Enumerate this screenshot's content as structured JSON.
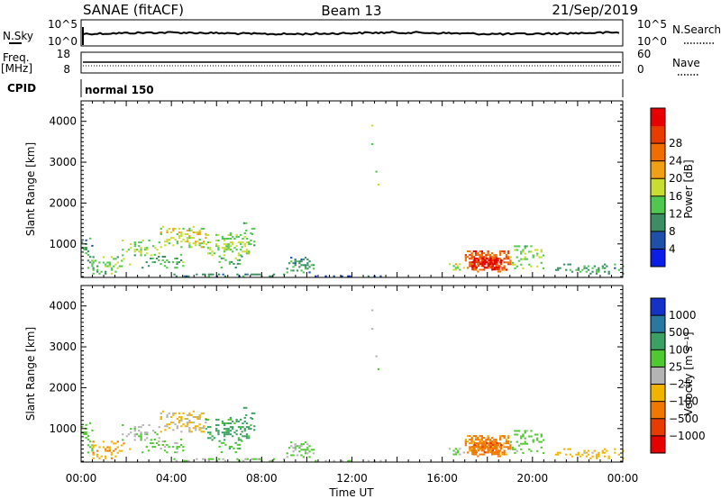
{
  "chart_data": {
    "type": "heatmap",
    "header": {
      "station_title": "SANAE (fitACF)",
      "beam_label": "Beam 13",
      "date_label": "21/Sep/2019"
    },
    "noise_panel": {
      "left_label": "N.Sky",
      "right_label": "N.Search",
      "left_ticks": [
        "10^5",
        "10^0"
      ],
      "right_ticks": [
        "10^5",
        "10^0"
      ]
    },
    "freq_panel": {
      "left_label_1": "Freq.",
      "left_label_2": "[MHz]",
      "right_label": "Nave",
      "left_ticks": [
        "18",
        "8"
      ],
      "right_ticks": [
        "60",
        "0"
      ]
    },
    "cpid_panel": {
      "left_label": "CPID",
      "mode_text": "normal 150"
    },
    "x_axis": {
      "xlabel": "Time UT",
      "tick_labels": [
        "00:00",
        "04:00",
        "08:00",
        "12:00",
        "16:00",
        "20:00",
        "00:00"
      ],
      "range_hours": [
        0,
        24
      ]
    },
    "power_panel": {
      "ylabel": "Slant Range [km]",
      "y_ticks": [
        "1000",
        "2000",
        "3000",
        "4000"
      ],
      "yrange_km": [
        180,
        4500
      ],
      "colorbar_label": "Power [dB]",
      "colorbar_ticks": [
        "4",
        "8",
        "12",
        "16",
        "20",
        "24",
        "28"
      ],
      "colorbar_colors": [
        "#0a1ee6",
        "#1e50aa",
        "#3c8c64",
        "#50c850",
        "#c8dc32",
        "#f0a014",
        "#f06e00",
        "#e63c00",
        "#e60000"
      ],
      "colorbar_range": [
        0,
        32
      ]
    },
    "velocity_panel": {
      "ylabel": "Slant Range [km]",
      "y_ticks": [
        "1000",
        "2000",
        "3000",
        "4000"
      ],
      "yrange_km": [
        180,
        4500
      ],
      "colorbar_label": "Velocity [m s⁻¹]",
      "colorbar_ticks": [
        "1000",
        "500",
        "100",
        "25",
        "−25",
        "−100",
        "−500",
        "−1000"
      ],
      "colorbar_colors": [
        "#1432c8",
        "#2878a0",
        "#3ca064",
        "#50c832",
        "#b4b4b4",
        "#f0b400",
        "#f07800",
        "#e63c00",
        "#e60000"
      ]
    },
    "data_patches": [
      {
        "t0": 0.0,
        "t1": 0.5,
        "r0": 300,
        "r1": 1200,
        "power": 10,
        "velocity": 60,
        "density": 0.35
      },
      {
        "t0": 0.5,
        "t1": 2.2,
        "r0": 250,
        "r1": 700,
        "power": 13,
        "velocity": -80,
        "density": 0.35
      },
      {
        "t0": 1.8,
        "t1": 3.5,
        "r0": 700,
        "r1": 1100,
        "power": 14,
        "velocity": 20,
        "density": 0.3
      },
      {
        "t0": 3.5,
        "t1": 5.5,
        "r0": 900,
        "r1": 1400,
        "power": 16,
        "velocity": -30,
        "density": 0.5
      },
      {
        "t0": 5.5,
        "t1": 7.5,
        "r0": 700,
        "r1": 1250,
        "power": 14,
        "velocity": 150,
        "density": 0.45
      },
      {
        "t0": 2.5,
        "t1": 4.5,
        "r0": 350,
        "r1": 750,
        "power": 11,
        "velocity": 40,
        "density": 0.25
      },
      {
        "t0": 6.0,
        "t1": 7.2,
        "r0": 400,
        "r1": 700,
        "power": 12,
        "velocity": 80,
        "density": 0.3
      },
      {
        "t0": 7.0,
        "t1": 8.0,
        "r0": 900,
        "r1": 1700,
        "power": 10,
        "velocity": 200,
        "density": 0.08
      },
      {
        "t0": 9.0,
        "t1": 10.3,
        "r0": 280,
        "r1": 650,
        "power": 9,
        "velocity": 30,
        "density": 0.6
      },
      {
        "t0": 4.0,
        "t1": 9.0,
        "r0": 185,
        "r1": 250,
        "power": 8,
        "velocity": 20,
        "density": 0.45
      },
      {
        "t0": 9.0,
        "t1": 16.0,
        "r0": 185,
        "r1": 230,
        "power": 6,
        "velocity": 15,
        "density": 0.25
      },
      {
        "t0": 16.2,
        "t1": 17.2,
        "r0": 300,
        "r1": 500,
        "power": 15,
        "velocity": 30,
        "density": 0.4
      },
      {
        "t0": 17.0,
        "t1": 19.0,
        "r0": 300,
        "r1": 800,
        "power": 25,
        "velocity": -150,
        "density": 0.9
      },
      {
        "t0": 17.3,
        "t1": 18.6,
        "r0": 350,
        "r1": 650,
        "power": 30,
        "velocity": -400,
        "density": 0.9
      },
      {
        "t0": 19.0,
        "t1": 20.5,
        "r0": 380,
        "r1": 950,
        "power": 14,
        "velocity": 60,
        "density": 0.35
      },
      {
        "t0": 21.0,
        "t1": 24.0,
        "r0": 250,
        "r1": 500,
        "power": 10,
        "velocity": -60,
        "density": 0.3
      },
      {
        "t0": 12.5,
        "t1": 13.6,
        "r0": 1800,
        "r1": 4300,
        "power": 12,
        "velocity": 10,
        "density": 0.01
      }
    ]
  }
}
